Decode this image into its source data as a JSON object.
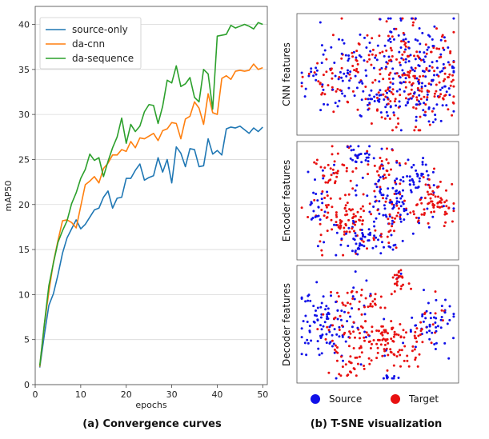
{
  "chart_data": [
    {
      "type": "line",
      "title": "",
      "caption": "(a) Convergence curves",
      "xlabel": "epochs",
      "ylabel": "mAP50",
      "xlim": [
        0,
        51
      ],
      "ylim": [
        0,
        42
      ],
      "xticks": [
        0,
        10,
        20,
        30,
        40,
        50
      ],
      "yticks": [
        0,
        5,
        10,
        15,
        20,
        25,
        30,
        35,
        40
      ],
      "grid": "horizontal",
      "legend_position": "top-left",
      "x": [
        1,
        2,
        3,
        4,
        5,
        6,
        7,
        8,
        9,
        10,
        11,
        12,
        13,
        14,
        15,
        16,
        17,
        18,
        19,
        20,
        21,
        22,
        23,
        24,
        25,
        26,
        27,
        28,
        29,
        30,
        31,
        32,
        33,
        34,
        35,
        36,
        37,
        38,
        39,
        40,
        41,
        42,
        43,
        44,
        45,
        46,
        47,
        48,
        49,
        50
      ],
      "series": [
        {
          "name": "source-only",
          "color": "#1f77b4",
          "values": [
            1.9,
            5.5,
            8.8,
            10.1,
            12.2,
            14.6,
            16.3,
            17.3,
            18.3,
            17.3,
            17.8,
            18.6,
            19.4,
            19.6,
            20.8,
            21.5,
            19.6,
            20.7,
            20.8,
            22.9,
            22.9,
            23.8,
            24.5,
            22.7,
            23.0,
            23.2,
            25.2,
            23.6,
            25.0,
            22.4,
            26.4,
            25.7,
            24.2,
            26.2,
            26.1,
            24.2,
            24.3,
            27.3,
            25.6,
            26.0,
            25.5,
            28.4,
            28.6,
            28.5,
            28.7,
            28.3,
            27.9,
            28.5,
            28.1,
            28.6
          ]
        },
        {
          "name": "da-cnn",
          "color": "#ff7f0e",
          "values": [
            2.0,
            6.6,
            10.3,
            13.6,
            16.0,
            18.2,
            18.3,
            18.0,
            17.4,
            19.8,
            22.2,
            22.6,
            23.1,
            22.4,
            24.0,
            24.6,
            25.5,
            25.5,
            26.1,
            25.9,
            27.0,
            26.3,
            27.4,
            27.3,
            27.6,
            27.9,
            27.1,
            28.2,
            28.4,
            29.1,
            29.0,
            27.3,
            29.5,
            29.8,
            31.4,
            30.7,
            28.9,
            32.3,
            30.2,
            30.0,
            34.0,
            34.3,
            33.9,
            34.8,
            34.9,
            34.8,
            34.9,
            35.6,
            35.0,
            35.2
          ]
        },
        {
          "name": "da-sequence",
          "color": "#2ca02c",
          "values": [
            2.1,
            6.7,
            11.0,
            13.5,
            15.8,
            17.1,
            18.2,
            20.1,
            21.3,
            22.9,
            23.9,
            25.6,
            24.9,
            25.2,
            23.1,
            24.8,
            26.3,
            27.5,
            29.6,
            26.8,
            28.9,
            28.1,
            28.7,
            30.3,
            31.1,
            31.0,
            29.0,
            30.9,
            33.8,
            33.5,
            35.4,
            33.1,
            33.4,
            34.1,
            31.9,
            31.4,
            35.0,
            34.5,
            30.6,
            38.7,
            38.8,
            38.9,
            39.9,
            39.6,
            39.8,
            40.0,
            39.8,
            39.5,
            40.2,
            40.0
          ]
        }
      ]
    },
    {
      "type": "scatter",
      "title": "",
      "caption": "(b) T-SNE visualization",
      "panels": [
        {
          "label": "CNN features",
          "pattern": "mixed"
        },
        {
          "label": "Encoder features",
          "pattern": "clustered"
        },
        {
          "label": "Decoder features",
          "pattern": "clustered"
        }
      ],
      "legend": [
        {
          "label": "Source",
          "color": "#1010e8"
        },
        {
          "label": "Target",
          "color": "#e81010"
        }
      ],
      "legend_position": "bottom"
    }
  ]
}
